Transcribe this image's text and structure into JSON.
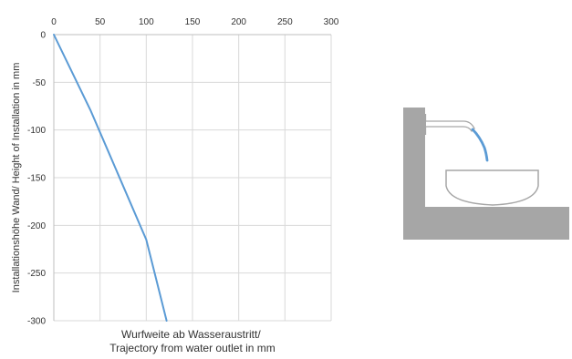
{
  "chart_data": {
    "type": "line",
    "title": "",
    "xlabel": [
      "Wurfweite ab Wasseraustritt/",
      "Trajectory from water outlet in mm"
    ],
    "ylabel": "Installationshöhe Wand/ Height of Installation  in mm",
    "xlim": [
      0,
      300
    ],
    "ylim": [
      -300,
      0
    ],
    "xticks": [
      0,
      50,
      100,
      150,
      200,
      250,
      300
    ],
    "yticks": [
      0,
      -50,
      -100,
      -150,
      -200,
      -250,
      -300
    ],
    "x_axis_position": "top",
    "grid": true,
    "legend": "none",
    "series": [
      {
        "color": "#5B9BD5",
        "points": [
          [
            0,
            0
          ],
          [
            20,
            -40
          ],
          [
            40,
            -80
          ],
          [
            60,
            -125
          ],
          [
            80,
            -170
          ],
          [
            100,
            -215
          ],
          [
            122,
            -300
          ]
        ]
      }
    ]
  },
  "illustration": {
    "name": "wall-mounted-spout-over-basin",
    "wall_color": "#A6A6A6",
    "outline_color": "#A6A6A6",
    "water_color": "#5B9BD5"
  }
}
